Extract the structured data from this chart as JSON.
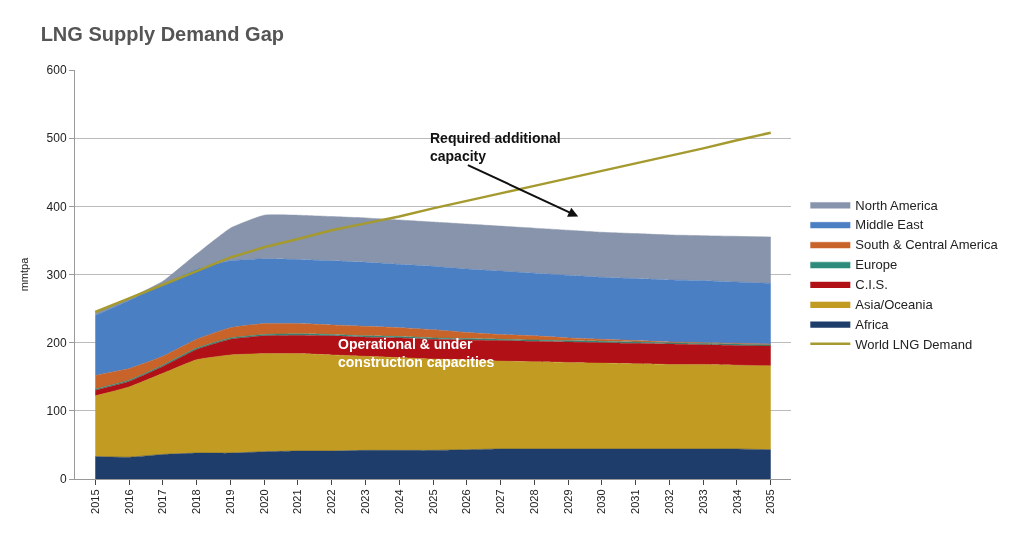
{
  "chart_data": {
    "type": "area",
    "title": "LNG Supply Demand Gap",
    "ylabel": "mmtpa",
    "categories": [
      "2015",
      "2016",
      "2017",
      "2018",
      "2019",
      "2020",
      "2021",
      "2022",
      "2023",
      "2024",
      "2025",
      "2026",
      "2027",
      "2028",
      "2029",
      "2030",
      "2031",
      "2032",
      "2033",
      "2034",
      "2035"
    ],
    "stacked": true,
    "series": [
      {
        "name": "Africa",
        "color": "#1f3d6b",
        "values": [
          33,
          32,
          36,
          38,
          38,
          40,
          41,
          41,
          42,
          42,
          42,
          43,
          44,
          44,
          44,
          44,
          44,
          44,
          44,
          44,
          43
        ]
      },
      {
        "name": "Asia/Oceania",
        "color": "#c29c22",
        "values": [
          89,
          103,
          119,
          137,
          144,
          144,
          143,
          141,
          138,
          136,
          134,
          132,
          129,
          128,
          127,
          126,
          125,
          124,
          124,
          123,
          123
        ]
      },
      {
        "name": "C.I.S.",
        "color": "#b01016",
        "values": [
          8,
          8,
          10,
          15,
          23,
          26,
          27,
          28,
          28,
          29,
          29,
          29,
          30,
          30,
          30,
          30,
          30,
          30,
          29,
          29,
          29
        ]
      },
      {
        "name": "Europe",
        "color": "#2e8a7a",
        "values": [
          2,
          2,
          2,
          2,
          2,
          2,
          2,
          2,
          2,
          2,
          2,
          2,
          2,
          2,
          2,
          2,
          2,
          2,
          2,
          2,
          2
        ]
      },
      {
        "name": "South & Central America",
        "color": "#c8642a",
        "values": [
          20,
          17,
          13,
          13,
          15,
          16,
          15,
          14,
          14,
          13,
          12,
          9,
          7,
          6,
          4,
          3,
          2,
          1,
          1,
          1,
          1
        ]
      },
      {
        "name": "Middle East",
        "color": "#4a7fc4",
        "values": [
          88,
          100,
          105,
          103,
          98,
          95,
          94,
          94,
          94,
          93,
          93,
          93,
          93,
          92,
          92,
          91,
          91,
          91,
          91,
          90,
          89
        ]
      },
      {
        "name": "North America",
        "color": "#8894ab",
        "values": [
          5,
          3,
          5,
          22,
          48,
          64,
          65,
          65,
          65,
          65,
          65,
          66,
          66,
          66,
          66,
          66,
          66,
          66,
          66,
          67,
          68
        ]
      },
      {
        "name": "World LNG Demand",
        "type": "line",
        "color": "#a59a2f",
        "values": [
          245,
          265,
          285,
          305,
          325,
          340,
          352,
          365,
          375,
          385,
          397,
          408,
          419,
          430,
          441,
          452,
          463,
          474,
          485,
          497,
          508
        ]
      }
    ],
    "ylim": [
      0,
      600
    ],
    "yticks": [
      0,
      100,
      200,
      300,
      400,
      500,
      600
    ],
    "grid": "y",
    "legend": "right",
    "annotations": [
      "Required additional\ncapacity",
      "Operational & under\nconstruction capacities"
    ]
  }
}
